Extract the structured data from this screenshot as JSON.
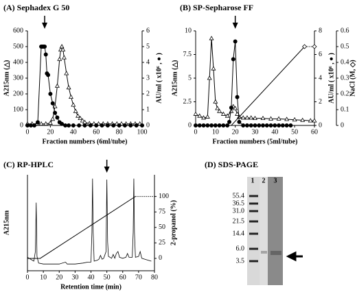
{
  "chart_data": [
    {
      "type": "line",
      "title": "(A) Sephadex G 50",
      "xlabel": "Fraction numbers (6ml/tube)",
      "ylabel": "A215nm (△)",
      "y2label": "AU/ml ( x10⁶ , ● )",
      "xlim": [
        0,
        100
      ],
      "xticks": [
        0,
        20,
        40,
        60,
        80,
        100
      ],
      "ylim": [
        0,
        600
      ],
      "yticks": [
        0,
        100,
        200,
        300,
        400,
        500,
        600
      ],
      "y2lim": [
        0,
        6
      ],
      "y2ticks": [
        0,
        1,
        2,
        3,
        4,
        5,
        6
      ],
      "arrow_x": 15,
      "grid": false,
      "series": [
        {
          "axis": "y",
          "marker": "triangle",
          "color": "#000000",
          "style": "solid",
          "x": [
            0,
            4,
            8,
            12,
            16,
            20,
            22,
            24,
            26,
            28,
            29,
            30,
            31,
            32,
            34,
            36,
            38,
            40,
            42,
            44,
            46,
            48,
            50,
            54,
            58,
            62,
            66,
            70,
            74,
            78,
            82,
            86,
            90,
            94,
            98
          ],
          "values": [
            10,
            10,
            10,
            10,
            10,
            15,
            40,
            120,
            250,
            420,
            480,
            500,
            480,
            430,
            330,
            240,
            180,
            130,
            90,
            60,
            45,
            30,
            20,
            12,
            10,
            10,
            10,
            10,
            10,
            10,
            10,
            10,
            10,
            10,
            10
          ]
        },
        {
          "axis": "y2",
          "marker": "circle",
          "color": "#000000",
          "style": "solid",
          "x": [
            0,
            3,
            6,
            9,
            12,
            13,
            14,
            15,
            16,
            17,
            18,
            20,
            22,
            24,
            26,
            28,
            30,
            33,
            36,
            40,
            45,
            50,
            55,
            60,
            65,
            70,
            75,
            80,
            85,
            90,
            95,
            100
          ],
          "values": [
            0,
            0,
            0,
            0.2,
            5,
            5,
            5,
            5,
            4.5,
            3.3,
            3.2,
            2.0,
            1.4,
            0.8,
            0.5,
            0.2,
            0.1,
            0,
            0,
            0,
            0,
            0,
            0,
            0,
            0,
            0,
            0,
            0,
            0,
            0,
            0,
            0
          ]
        }
      ]
    },
    {
      "type": "line",
      "title": "(B) SP-Sepharose FF",
      "xlabel": "Fraction  numbers (5ml/tube)",
      "ylabel": "A215nm (△)",
      "y2label": "AU/ml ( x10⁶ , ● )",
      "y3label": "NaCl (M, ◇)",
      "xlim": [
        0,
        60
      ],
      "xticks": [
        0,
        10,
        20,
        30,
        40,
        50,
        60
      ],
      "ylim": [
        0,
        10
      ],
      "yticks": [
        0,
        2.5,
        5,
        7.5,
        10
      ],
      "y2lim": [
        0,
        8
      ],
      "y2ticks": [
        0,
        2,
        4,
        6,
        8
      ],
      "y3lim": [
        0,
        0.6
      ],
      "y3ticks": [
        0,
        0.1,
        0.2,
        0.3,
        0.4,
        0.5,
        0.6
      ],
      "arrow_x": 20,
      "grid": false,
      "series": [
        {
          "axis": "y",
          "marker": "triangle",
          "color": "#000000",
          "style": "solid",
          "x": [
            0,
            2,
            4,
            6,
            7,
            8,
            9,
            10,
            11,
            12,
            14,
            16,
            18,
            19,
            20,
            21,
            22,
            24,
            26,
            28,
            30,
            34,
            38,
            42,
            46,
            50,
            54,
            58,
            60
          ],
          "values": [
            1.2,
            1.0,
            0.8,
            0.9,
            5,
            9.2,
            6,
            2.5,
            1.8,
            1.5,
            1.2,
            1.0,
            1.5,
            2,
            1.8,
            1.2,
            0.9,
            0.8,
            0.8,
            0.8,
            0.75,
            0.75,
            0.7,
            0.7,
            0.65,
            0.6,
            0.55,
            0.5,
            0.5
          ]
        },
        {
          "axis": "y2",
          "marker": "circle",
          "color": "#000000",
          "style": "solid",
          "x": [
            0,
            2,
            4,
            6,
            8,
            10,
            12,
            14,
            16,
            17,
            18,
            19,
            20,
            21,
            22,
            24,
            26,
            28,
            30,
            32,
            34,
            36,
            38,
            40,
            42,
            44,
            46,
            48
          ],
          "values": [
            0,
            0,
            0,
            0,
            0,
            0,
            0,
            0,
            0,
            0.3,
            1.5,
            5.6,
            7.1,
            2.4,
            0.3,
            0,
            0,
            0,
            0,
            0,
            0,
            0,
            0,
            0,
            0,
            0,
            0,
            0
          ]
        },
        {
          "axis": "y3",
          "marker": "none",
          "color": "#000000",
          "style": "solid",
          "x": [
            18,
            55
          ],
          "values": [
            0,
            0.5
          ]
        },
        {
          "axis": "y3",
          "marker": "diamond",
          "color": "#000000",
          "style": "dotted",
          "x": [
            55,
            60
          ],
          "values": [
            0.5,
            0.5
          ]
        }
      ]
    },
    {
      "type": "line",
      "title": "(C) RP-HPLC",
      "xlabel": "Retention time (min)",
      "ylabel": "A215nm",
      "y2label": "2-propanol (%)",
      "xlim": [
        0,
        80
      ],
      "xticks": [
        0,
        10,
        20,
        30,
        40,
        50,
        60,
        70,
        80
      ],
      "ylim": [
        0,
        100
      ],
      "y2lim": [
        -20,
        135
      ],
      "y2ticks": [
        0,
        25,
        50,
        75,
        100
      ],
      "arrow_x": 50,
      "grid": false,
      "series": [
        {
          "axis": "y",
          "marker": "none",
          "color": "#000000",
          "style": "solid",
          "x": [
            0,
            4,
            5,
            5.5,
            6,
            7,
            10,
            20,
            24,
            25,
            30,
            35,
            38,
            40,
            40.6,
            41,
            41.4,
            42,
            44,
            45,
            46,
            47,
            48,
            49.5,
            50,
            50.5,
            51,
            53,
            54,
            55,
            56,
            57,
            58,
            60,
            62,
            63,
            64,
            66,
            66.6,
            67,
            67.4,
            68,
            70,
            71,
            72,
            74,
            76,
            78
          ],
          "values": [
            14,
            10,
            20,
            71,
            15,
            8,
            7,
            7,
            9,
            7,
            7,
            8,
            9,
            9,
            40,
            96,
            40,
            10,
            11,
            12,
            16,
            12,
            13,
            20,
            95,
            30,
            15,
            13,
            17,
            13,
            18,
            20,
            14,
            13,
            14,
            18,
            14,
            14,
            40,
            96,
            40,
            14,
            15,
            20,
            13,
            12,
            11,
            10
          ]
        },
        {
          "axis": "y2",
          "marker": "none",
          "color": "#000000",
          "style": "solid",
          "x": [
            0,
            8,
            68
          ],
          "values": [
            0,
            0,
            100
          ]
        },
        {
          "axis": "y2",
          "marker": "none",
          "color": "#000000",
          "style": "dotted",
          "x": [
            68,
            80
          ],
          "values": [
            100,
            100
          ]
        }
      ]
    }
  ],
  "gel": {
    "title": "(D) SDS-PAGE",
    "lanes": [
      "1",
      "2",
      "3"
    ],
    "markers": [
      "55.4",
      "36.5",
      "31.0",
      "21.5",
      "14.4",
      "6.0",
      "3.5"
    ]
  }
}
